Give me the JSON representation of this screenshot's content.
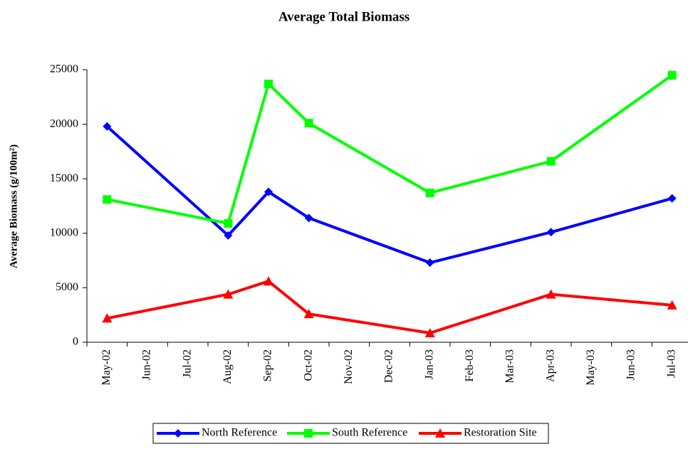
{
  "chart_data": {
    "type": "line",
    "title": "Average Total Biomass",
    "y_label": "Average Biomass (g/100m²)",
    "categories": [
      "May-02",
      "Jun-02",
      "Jul-02",
      "Aug-02",
      "Sep-02",
      "Oct-02",
      "Nov-02",
      "Dec-02",
      "Jan-03",
      "Feb-03",
      "Mar-03",
      "Apr-03",
      "May-03",
      "Jun-03",
      "Jul-03"
    ],
    "x": [
      "May-02",
      "Aug-02",
      "Sep-02",
      "Oct-02",
      "Jan-03",
      "Apr-03",
      "Jul-03"
    ],
    "series": [
      {
        "name": "North Reference",
        "color": "#0000ff",
        "marker": "diamond",
        "values": [
          19800,
          9800,
          13800,
          11400,
          7300,
          10100,
          13200
        ]
      },
      {
        "name": "South Reference",
        "color": "#00ff00",
        "marker": "square",
        "values": [
          13100,
          10900,
          23700,
          20100,
          13700,
          16600,
          24500
        ]
      },
      {
        "name": "Restoration Site",
        "color": "#ff0000",
        "marker": "triangle",
        "values": [
          2200,
          4400,
          5600,
          2600,
          850,
          4400,
          3400
        ]
      }
    ],
    "ylim": [
      0,
      25000
    ],
    "yticks": [
      0,
      5000,
      10000,
      15000,
      20000,
      25000
    ],
    "legend": "bottom"
  }
}
